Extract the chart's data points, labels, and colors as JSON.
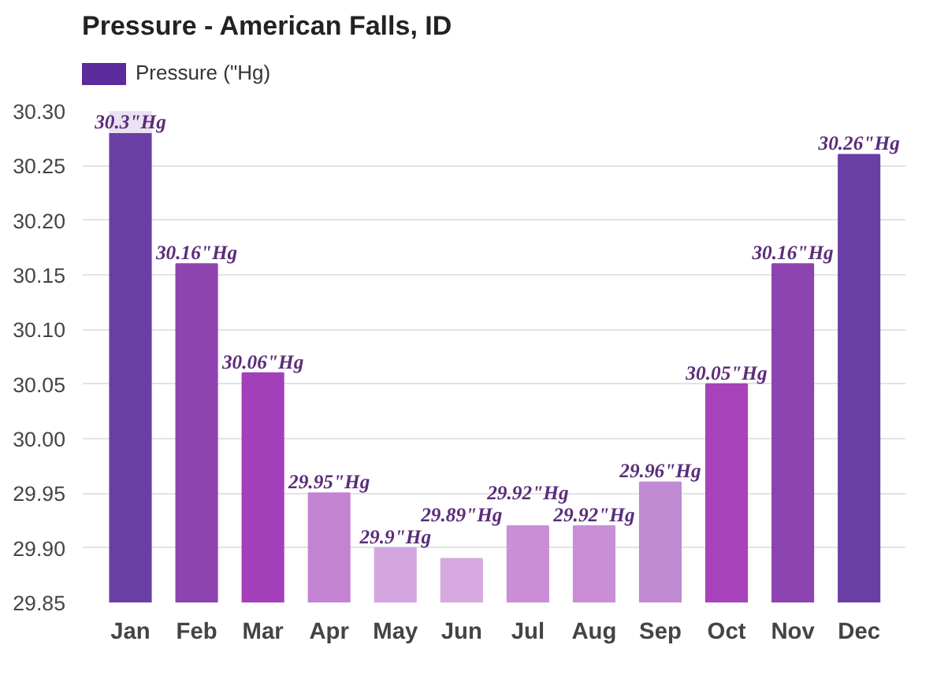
{
  "chart_data": {
    "type": "bar",
    "title": "Pressure - American Falls, ID",
    "categories": [
      "Jan",
      "Feb",
      "Mar",
      "Apr",
      "May",
      "Jun",
      "Jul",
      "Aug",
      "Sep",
      "Oct",
      "Nov",
      "Dec"
    ],
    "series": [
      {
        "name": "Pressure (\"Hg)",
        "color": "#5b2a9b",
        "colors": [
          "#6a3fa5",
          "#8e44b0",
          "#a43fba",
          "#c383d2",
          "#d4a6e0",
          "#d6a9e0",
          "#c98ed6",
          "#c98ed6",
          "#c08bd3",
          "#a842ba",
          "#8e44b0",
          "#6a3fa5"
        ],
        "values": [
          30.3,
          30.16,
          30.06,
          29.95,
          29.9,
          29.89,
          29.92,
          29.92,
          29.96,
          30.05,
          30.16,
          30.26
        ],
        "value_labels": [
          "30.3\"Hg",
          "30.16\"Hg",
          "30.06\"Hg",
          "29.95\"Hg",
          "29.9\"Hg",
          "29.89\"Hg",
          "29.92\"Hg",
          "29.92\"Hg",
          "29.96\"Hg",
          "30.05\"Hg",
          "30.16\"Hg",
          "30.26\"Hg"
        ]
      }
    ],
    "ylim": [
      29.85,
      30.3
    ],
    "yticks": [
      {
        "value": 29.85,
        "label": "29.85"
      },
      {
        "value": 29.9,
        "label": "29.90"
      },
      {
        "value": 29.95,
        "label": "29.95"
      },
      {
        "value": 30.0,
        "label": "30.00"
      },
      {
        "value": 30.05,
        "label": "30.05"
      },
      {
        "value": 30.1,
        "label": "30.10"
      },
      {
        "value": 30.15,
        "label": "30.15"
      },
      {
        "value": 30.2,
        "label": "30.20"
      },
      {
        "value": 30.25,
        "label": "30.25"
      },
      {
        "value": 30.3,
        "label": "30.30"
      }
    ],
    "grid": "y",
    "legend": "top left"
  }
}
